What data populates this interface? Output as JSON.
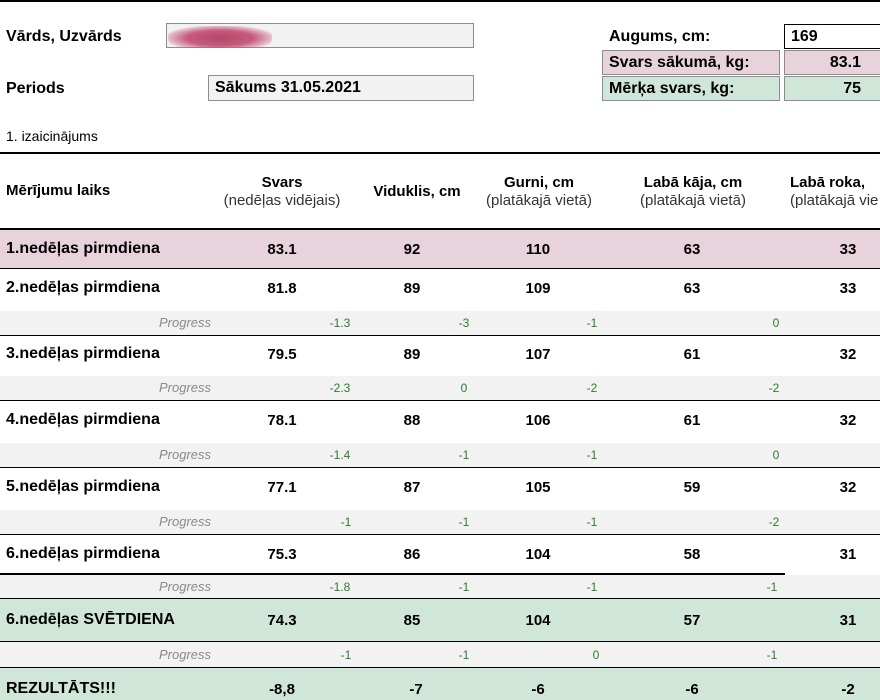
{
  "form": {
    "name_label": "Vārds, Uzvārds",
    "period_label": "Periods",
    "period_value": "Sākums 31.05.2021",
    "height_label": "Augums, cm:",
    "height_value": "169",
    "start_weight_label": "Svars sākumā, kg:",
    "start_weight_value": "83.1",
    "target_weight_label": "Mērķa svars, kg:",
    "target_weight_value": "75",
    "challenge_label": "1. izaicinājums"
  },
  "table": {
    "headers": {
      "time": "Mērījumu laiks",
      "weight_main": "Svars",
      "weight_sub": "(nedēļas vidējais)",
      "waist": "Viduklis, cm",
      "hips_main": "Gurni, cm",
      "hips_sub": "(platākajā vietā)",
      "leg_main": "Labā kāja, cm",
      "leg_sub": "(platākajā vietā)",
      "arm_main": "Labā roka,",
      "arm_sub": "(platākajā vie"
    },
    "progress_label": "Progress",
    "rows": [
      {
        "label": "1.nedēļas pirmdiena",
        "svars": "83.1",
        "viduklis": "92",
        "gurni": "110",
        "kaja": "63",
        "roka": "33"
      },
      {
        "label": "2.nedēļas pirmdiena",
        "svars": "81.8",
        "viduklis": "89",
        "gurni": "109",
        "kaja": "63",
        "roka": "33"
      },
      {
        "label": "3.nedēļas pirmdiena",
        "svars": "79.5",
        "viduklis": "89",
        "gurni": "107",
        "kaja": "61",
        "roka": "32"
      },
      {
        "label": "4.nedēļas pirmdiena",
        "svars": "78.1",
        "viduklis": "88",
        "gurni": "106",
        "kaja": "61",
        "roka": "32"
      },
      {
        "label": "5.nedēļas pirmdiena",
        "svars": "77.1",
        "viduklis": "87",
        "gurni": "105",
        "kaja": "59",
        "roka": "32"
      },
      {
        "label": "6.nedēļas pirmdiena",
        "svars": "75.3",
        "viduklis": "86",
        "gurni": "104",
        "kaja": "58",
        "roka": "31"
      },
      {
        "label": "6.nedēļas SVĒTDIENA",
        "svars": "74.3",
        "viduklis": "85",
        "gurni": "104",
        "kaja": "57",
        "roka": "31"
      }
    ],
    "progress": [
      [
        "-1.3",
        "-3",
        "-1",
        "0"
      ],
      [
        "-2.3",
        "0",
        "-2",
        "-2"
      ],
      [
        "-1.4",
        "-1",
        "-1",
        "0"
      ],
      [
        "-1",
        "-1",
        "-1",
        "-2"
      ],
      [
        "-1.8",
        "-1",
        "-1",
        "-1"
      ],
      [
        "-1",
        "-1",
        "0",
        "-1"
      ]
    ],
    "result": {
      "label": "REZULTĀTS!!!",
      "svars": "-8,8",
      "viduklis": "-7",
      "gurni": "-6",
      "kaja": "-6",
      "roka": "-2"
    }
  },
  "colors": {
    "pink": "#e8d3dd",
    "green": "#cfe6d9",
    "progress_bg": "#f2f2f2",
    "progress_text": "#2f7a2f"
  }
}
